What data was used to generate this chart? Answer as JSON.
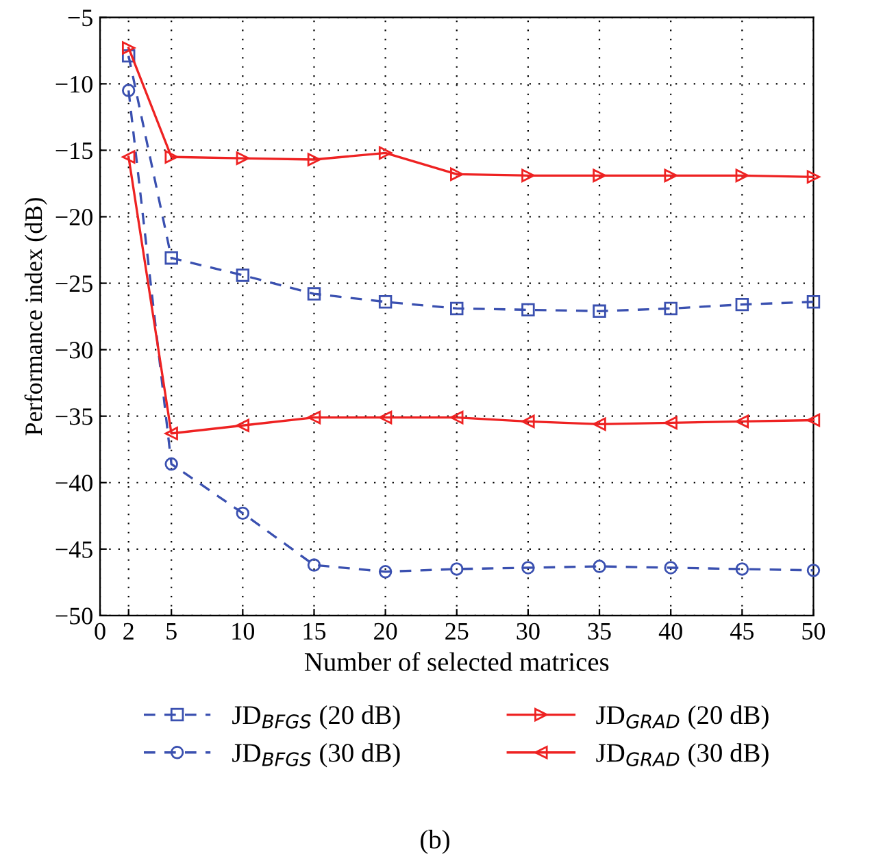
{
  "chart_data": {
    "type": "line",
    "xlabel": "Number of selected matrices",
    "ylabel": "Performance index (dB)",
    "x": [
      2,
      5,
      10,
      15,
      20,
      25,
      30,
      35,
      40,
      45,
      50
    ],
    "xlim": [
      0,
      50
    ],
    "xticks": [
      0,
      2,
      5,
      10,
      15,
      20,
      25,
      30,
      35,
      40,
      45,
      50
    ],
    "ylim": [
      -50,
      -5
    ],
    "yticks": [
      -50,
      -45,
      -40,
      -35,
      -30,
      -25,
      -20,
      -15,
      -10,
      -5
    ],
    "grid": true,
    "legend": "bottom",
    "series": [
      {
        "name": "JD$_{BFGS}$ (20 dB)",
        "color": "#3a50b0",
        "marker": "square",
        "line_style": "dashed",
        "values": [
          -7.9,
          -23.1,
          -24.4,
          -25.8,
          -26.4,
          -26.9,
          -27.0,
          -27.1,
          -26.9,
          -26.6,
          -26.4
        ]
      },
      {
        "name": "JD$_{BFGS}$ (30 dB)",
        "color": "#3a50b0",
        "marker": "circle",
        "line_style": "dashed",
        "values": [
          -10.5,
          -38.6,
          -42.3,
          -46.2,
          -46.7,
          -46.5,
          -46.4,
          -46.3,
          -46.4,
          -46.5,
          -46.6
        ]
      },
      {
        "name": "JD$_{GRAD}$ (20 dB)",
        "color": "#ee2222",
        "marker": "triangle-right",
        "line_style": "solid",
        "values": [
          -7.3,
          -15.5,
          -15.6,
          -15.7,
          -15.2,
          -16.8,
          -16.9,
          -16.9,
          -16.9,
          -16.9,
          -17.0
        ]
      },
      {
        "name": "JD$_{GRAD}$ (30 dB)",
        "color": "#ee2222",
        "marker": "triangle-left",
        "line_style": "solid",
        "values": [
          -15.5,
          -36.3,
          -35.7,
          -35.1,
          -35.1,
          -35.1,
          -35.4,
          -35.6,
          -35.5,
          -35.4,
          -35.3
        ]
      }
    ],
    "annotations": [
      "(b)"
    ]
  }
}
